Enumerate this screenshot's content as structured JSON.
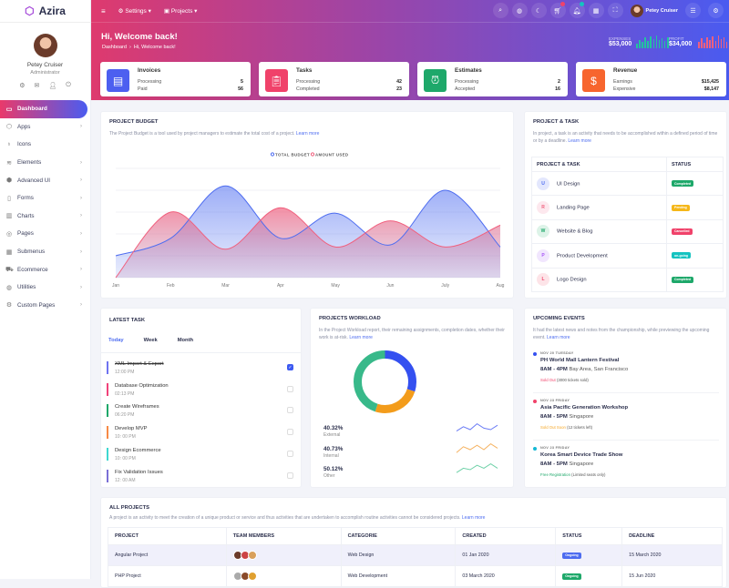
{
  "app": {
    "name": "Azira"
  },
  "sidebar": {
    "user": {
      "name": "Petey Cruiser",
      "role": "Administrator"
    },
    "items": [
      {
        "label": "Dashboard",
        "icon": "monitor-icon",
        "active": true
      },
      {
        "label": "Apps",
        "icon": "cube-icon",
        "chevron": true
      },
      {
        "label": "Icons",
        "icon": "award-icon"
      },
      {
        "label": "Elements",
        "icon": "layers-icon",
        "chevron": true
      },
      {
        "label": "Advanced UI",
        "icon": "box-icon",
        "chevron": true
      },
      {
        "label": "Forms",
        "icon": "file-icon",
        "chevron": true
      },
      {
        "label": "Charts",
        "icon": "bar-chart-icon",
        "chevron": true
      },
      {
        "label": "Pages",
        "icon": "compass-icon",
        "chevron": true
      },
      {
        "label": "Submenus",
        "icon": "grid-icon",
        "chevron": true
      },
      {
        "label": "Ecommerce",
        "icon": "cart-icon",
        "chevron": true
      },
      {
        "label": "Utilities",
        "icon": "globe-icon",
        "chevron": true
      },
      {
        "label": "Custom Pages",
        "icon": "settings-icon",
        "chevron": true
      }
    ]
  },
  "topbar": {
    "settings": "Settings",
    "projects": "Projects",
    "user": "Petey Cruiser",
    "cart_badge": "8",
    "notif_badge": "5"
  },
  "hero": {
    "title": "Hi, Welcome back!",
    "breadcrumb": [
      "Dashboard",
      "Hi, Welcome back!"
    ],
    "expenses_label": "EXPENSES",
    "expenses": "$53,000",
    "profit_label": "PROFIT",
    "profit": "$34,000"
  },
  "stats": [
    {
      "title": "Invoices",
      "rows": [
        [
          "Processing",
          "5"
        ],
        [
          "Paid",
          "56"
        ]
      ],
      "color": "#4d5ff0"
    },
    {
      "title": "Tasks",
      "rows": [
        [
          "Processing",
          "42"
        ],
        [
          "Completed",
          "23"
        ]
      ],
      "color": "#f0426a"
    },
    {
      "title": "Estimates",
      "rows": [
        [
          "Processing",
          "2"
        ],
        [
          "Accepted",
          "16"
        ]
      ],
      "color": "#1ea86a"
    },
    {
      "title": "Revenue",
      "rows": [
        [
          "Earnings",
          "$15,425"
        ],
        [
          "Expensive",
          "$8,147"
        ]
      ],
      "color": "#f7652e"
    }
  ],
  "budget": {
    "title": "PROJECT BUDGET",
    "desc": "The Project Budget is a tool used by project managers to estimate the total cost of a project.",
    "link": "Learn more"
  },
  "chart_data": {
    "type": "area",
    "categories": [
      "Jan",
      "Feb",
      "Mar",
      "Apr",
      "May",
      "Jun",
      "July",
      "Aug"
    ],
    "series": [
      {
        "name": "TOTAL BUDGET",
        "color": "#4d6cf0",
        "values": [
          20,
          36,
          84,
          36,
          59,
          30,
          80,
          28
        ]
      },
      {
        "name": "AMOUNT USED",
        "color": "#f0607e",
        "values": [
          0,
          60,
          26,
          64,
          28,
          52,
          28,
          48
        ]
      }
    ],
    "ylim": [
      0,
      100
    ],
    "grid": true,
    "legend": "top-center"
  },
  "ptask": {
    "title": "PROJECT & TASK",
    "desc": "In project, a task is an activity that needs to be accomplished within a defined period of time or by a deadline.",
    "link": "Learn more",
    "headers": [
      "PROJECT & TASK",
      "STATUS"
    ],
    "rows": [
      {
        "initial": "U",
        "name": "UI Design",
        "status": "Completed",
        "color": "#4d6cf0",
        "bg": "#e3e7fd",
        "scolor": "#1ea86a"
      },
      {
        "initial": "R",
        "name": "Landing Page",
        "status": "Pending",
        "color": "#f0607e",
        "bg": "#fde8ee",
        "scolor": "#f5b719"
      },
      {
        "initial": "W",
        "name": "Website & Blog",
        "status": "Cancelled",
        "color": "#1ea86a",
        "bg": "#ddf3e8",
        "scolor": "#f0426a"
      },
      {
        "initial": "P",
        "name": "Product Development",
        "status": "on-going",
        "color": "#a855f7",
        "bg": "#f1e6fe",
        "scolor": "#14c3c0"
      },
      {
        "initial": "L",
        "name": "Logo Design",
        "status": "Completed",
        "color": "#f0426a",
        "bg": "#fde4e8",
        "scolor": "#1ea86a"
      }
    ]
  },
  "latest": {
    "title": "LATEST TASK",
    "tabs": [
      "Today",
      "Week",
      "Month"
    ],
    "tasks": [
      {
        "name": "XML Import & Export",
        "time": "12:00 PM",
        "color": "#6e73f0",
        "done": true
      },
      {
        "name": "Database Optimization",
        "time": "02:13 PM",
        "color": "#f0427a"
      },
      {
        "name": "Create Wireframes",
        "time": "06:20 PM",
        "color": "#1ea86a"
      },
      {
        "name": "Develop MVP",
        "time": "10: 00 PM",
        "color": "#f78a46"
      },
      {
        "name": "Design Ecommerce",
        "time": "10: 00 PM",
        "color": "#3ed7d0"
      },
      {
        "name": "Fix Validation Issues",
        "time": "12: 00 AM",
        "color": "#7a6fd6"
      }
    ]
  },
  "workload": {
    "title": "PROJECTS WORKLOAD",
    "desc": "In the Project Workload report, their remaining assignments, completion dates, whether their work is at-risk.",
    "link": "Learn more",
    "items": [
      {
        "pct": "40.32%",
        "label": "External",
        "color": "#6b7cf5"
      },
      {
        "pct": "40.73%",
        "label": "Internal",
        "color": "#f5b260"
      },
      {
        "pct": "50.12%",
        "label": "Other",
        "color": "#6fd1a8"
      }
    ],
    "donut": [
      {
        "color": "#3450f0",
        "value": 30
      },
      {
        "color": "#f39c1b",
        "value": 25
      },
      {
        "color": "#38b98a",
        "value": 45
      }
    ]
  },
  "events": {
    "title": "UPCOMING EVENTS",
    "desc": "It had the latest news and notes from the championship, while previewing the upcoming event.",
    "link": "Learn more",
    "items": [
      {
        "date": "NOV 20 TUESDAY",
        "name": "PH World Mall Lantern Festival",
        "time": "8AM - 4PM",
        "place": "Bay Area, San Francisco",
        "status": "Sold Out",
        "note": "(3000 tickets sold)",
        "dot": "#3450f0",
        "scolor": "#f0426a"
      },
      {
        "date": "NOV 23 FRIDAY",
        "name": "Asia Pacific Generation Workshop",
        "time": "8AM - 5PM",
        "place": "Singapore",
        "status": "Sold Out Soon",
        "note": "(12 tickets left)",
        "dot": "#f0426a",
        "scolor": "#f5a623"
      },
      {
        "date": "NOV 23 FRIDAY",
        "name": "Korea Smart Device Trade Show",
        "time": "8AM - 5PM",
        "place": "Singapore",
        "status": "Free Registration",
        "note": "(Limited seats only)",
        "dot": "#14b8d4",
        "scolor": "#1ea86a"
      }
    ]
  },
  "projects": {
    "title": "ALL PROJECTS",
    "desc": "A project is an activity to meet the creation of a unique product or service and thus activities that are undertaken to accomplish routine activities cannot be considered projects.",
    "link": "Learn more",
    "headers": [
      "PROJECT",
      "TEAM MEMBERS",
      "CATEGORIE",
      "CREATED",
      "STATUS",
      "DEADLINE"
    ],
    "rows": [
      {
        "project": "Angular Project",
        "category": "Web Design",
        "created": "01 Jan 2020",
        "status": "Ongoing",
        "scolor": "#4d6cf0",
        "deadline": "15 March 2020"
      },
      {
        "project": "PHP Project",
        "category": "Web Development",
        "created": "03 March 2020",
        "status": "Ongoing",
        "scolor": "#1ea86a",
        "deadline": "15 Jun 2020"
      }
    ]
  }
}
